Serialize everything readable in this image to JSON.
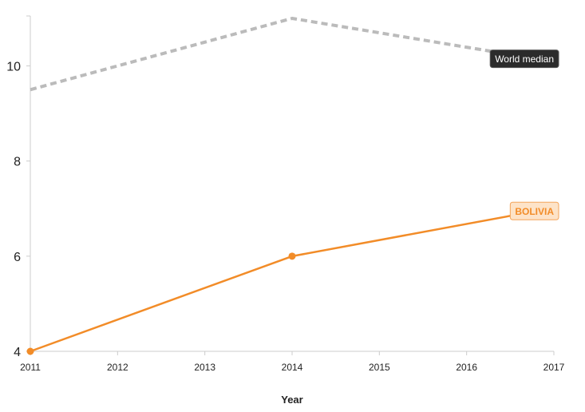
{
  "chart_data": {
    "type": "line",
    "xlabel": "Year",
    "ylabel": "",
    "x_ticks": [
      "2011",
      "2012",
      "2013",
      "2014",
      "2015",
      "2016",
      "2017"
    ],
    "y_ticks": [
      "4",
      "6",
      "8",
      "10"
    ],
    "xlim": [
      2011,
      2017
    ],
    "ylim": [
      4,
      11.05
    ],
    "grid": false,
    "series": [
      {
        "name": "World median",
        "color": "#bbbbbb",
        "style": "dashed",
        "label_style": "dark-tag",
        "x": [
          2011,
          2014,
          2016.8
        ],
        "y": [
          9.5,
          11.0,
          10.15
        ]
      },
      {
        "name": "BOLIVIA",
        "color": "#f28c28",
        "style": "solid",
        "label_style": "orange-tag",
        "x": [
          2011,
          2014,
          2016.8
        ],
        "y": [
          4.0,
          6.0,
          6.95
        ],
        "markers": [
          2011,
          2014
        ]
      }
    ]
  }
}
